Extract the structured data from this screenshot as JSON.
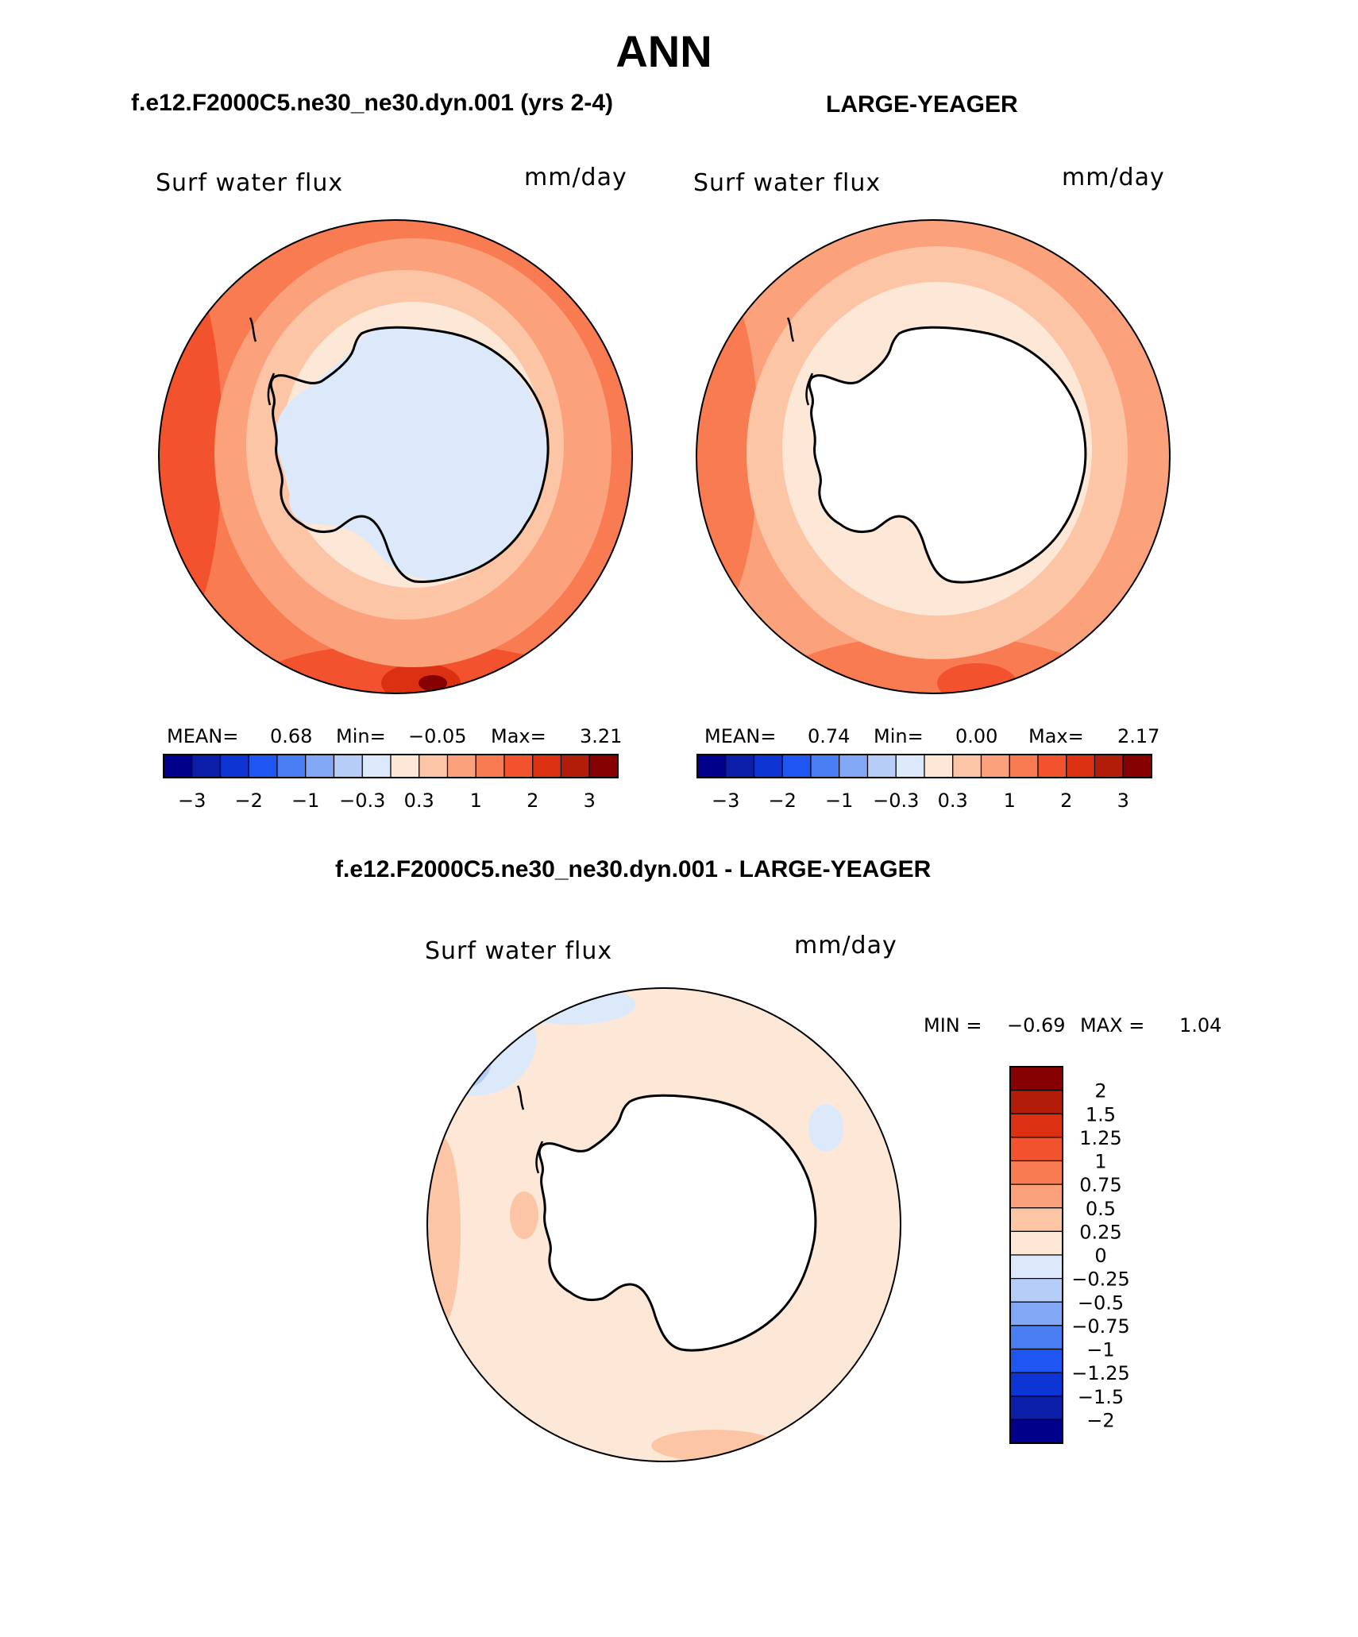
{
  "title": "ANN",
  "panels": [
    {
      "id": "case",
      "subtitle": "f.e12.F2000C5.ne30_ne30.dyn.001 (yrs 2-4)",
      "field": "Surf water flux",
      "units": "mm/day",
      "stats": {
        "mean_label": "MEAN=",
        "mean": "0.68",
        "min_label": "Min=",
        "min": "−0.05",
        "max_label": "Max=",
        "max": "3.21"
      }
    },
    {
      "id": "obs",
      "subtitle": "LARGE-YEAGER",
      "field": "Surf water flux",
      "units": "mm/day",
      "stats": {
        "mean_label": "MEAN=",
        "mean": "0.74",
        "min_label": "Min=",
        "min": "0.00",
        "max_label": "Max=",
        "max": "2.17"
      }
    },
    {
      "id": "diff",
      "subtitle": "f.e12.F2000C5.ne30_ne30.dyn.001 - LARGE-YEAGER",
      "field": "Surf water flux",
      "units": "mm/day",
      "stats": {
        "min_label": "MIN =",
        "min": "−0.69",
        "max_label": "MAX =",
        "max": "1.04"
      }
    }
  ],
  "colorbar_abs": {
    "colors": [
      "#00008b",
      "#0a1ea8",
      "#0d35d4",
      "#1f55f0",
      "#4a7cf2",
      "#82a8f5",
      "#b6cdf7",
      "#dbe9fa",
      "#fde8d8",
      "#fcc6a6",
      "#fba27c",
      "#f87b52",
      "#f2522d",
      "#dc3012",
      "#b11d08",
      "#850000"
    ],
    "tick_labels": [
      "−3",
      "−2",
      "−1",
      "−0.3",
      "0.3",
      "1",
      "2",
      "3"
    ]
  },
  "colorbar_diff": {
    "colors": [
      "#00008b",
      "#0a1ea8",
      "#0d35d4",
      "#1f55f0",
      "#4a7cf2",
      "#82a8f5",
      "#b6cdf7",
      "#dbe9fa",
      "#fde8d8",
      "#fcc6a6",
      "#fba27c",
      "#f87b52",
      "#f2522d",
      "#dc3012",
      "#b11d08",
      "#850000"
    ],
    "tick_labels": [
      "−2",
      "−1.5",
      "−1.25",
      "−1",
      "−0.75",
      "−0.5",
      "−0.25",
      "0",
      "0.25",
      "0.5",
      "0.75",
      "1",
      "1.25",
      "1.5",
      "2"
    ]
  }
}
